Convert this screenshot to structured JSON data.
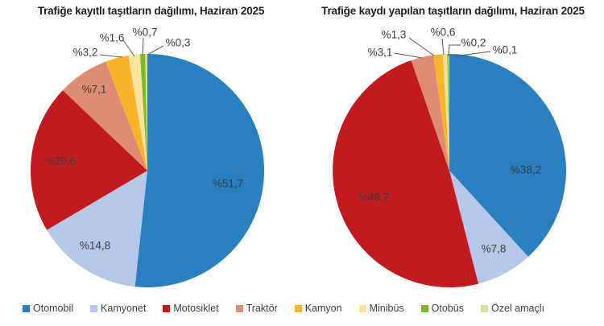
{
  "page": {
    "background": "#ffffff",
    "source_type": "statistical release figure with two pie charts"
  },
  "chart_data": [
    {
      "type": "pie",
      "title": "Trafiğe kayıtlı taşıtların dağılımı, Haziran 2025",
      "unit": "%",
      "start_angle_deg": 0,
      "direction": "clockwise",
      "legend_position": "bottom",
      "categories": [
        "Otomobil",
        "Kamyonet",
        "Motosiklet",
        "Traktör",
        "Kamyon",
        "Minibüs",
        "Otobüs",
        "Özel amaçlı"
      ],
      "values": [
        51.7,
        14.8,
        20.6,
        7.1,
        3.2,
        1.6,
        0.7,
        0.3
      ],
      "labels": [
        "%51,7",
        "%14,8",
        "%20,6",
        "%7,1",
        "%3,2",
        "%1,6",
        "%0,7",
        "%0,3"
      ],
      "colors": [
        "#2A7FC1",
        "#B5C8E9",
        "#C11B20",
        "#DC8D74",
        "#F9B42B",
        "#FBE3A0",
        "#7DB928",
        "#D6DFA5"
      ]
    },
    {
      "type": "pie",
      "title": "Trafiğe kaydı yapılan taşıtların dağılımı, Haziran 2025",
      "unit": "%",
      "start_angle_deg": 0,
      "direction": "clockwise",
      "legend_position": "bottom",
      "categories": [
        "Otomobil",
        "Kamyonet",
        "Motosiklet",
        "Traktör",
        "Kamyon",
        "Minibüs",
        "Otobüs",
        "Özel amaçlı"
      ],
      "values": [
        38.2,
        7.8,
        48.7,
        3.1,
        1.3,
        0.6,
        0.2,
        0.1
      ],
      "labels": [
        "%38,2",
        "%7,8",
        "%48,7",
        "%3,1",
        "%1,3",
        "%0,6",
        "%0,2",
        "%0,1"
      ],
      "colors": [
        "#2A7FC1",
        "#B5C8E9",
        "#C11B20",
        "#DC8D74",
        "#F9B42B",
        "#FBE3A0",
        "#7DB928",
        "#D6DFA5"
      ]
    }
  ],
  "legend": {
    "position": "bottom",
    "items": [
      {
        "label": "Otomobil",
        "color": "#2A7FC1"
      },
      {
        "label": "Kamyonet",
        "color": "#B5C8E9"
      },
      {
        "label": "Motosiklet",
        "color": "#C11B20"
      },
      {
        "label": "Traktör",
        "color": "#DC8D74"
      },
      {
        "label": "Kamyon",
        "color": "#F9B42B"
      },
      {
        "label": "Minibüs",
        "color": "#FBE3A0"
      },
      {
        "label": "Otobüs",
        "color": "#7DB928"
      },
      {
        "label": "Özel amaçlı",
        "color": "#D6DFA5"
      }
    ]
  }
}
